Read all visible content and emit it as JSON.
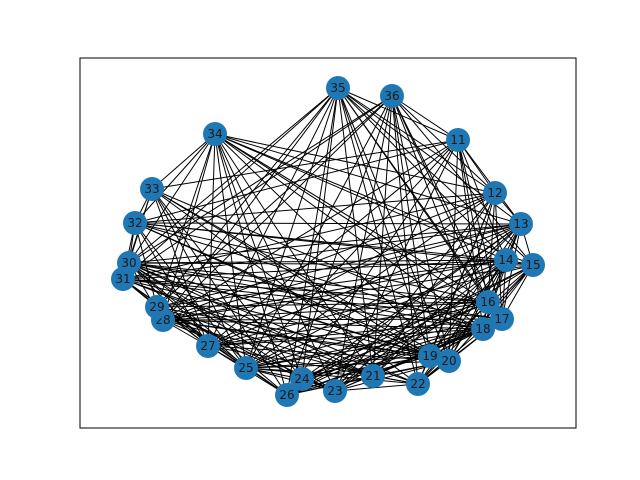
{
  "graph": {
    "node_color": "#1f77b4",
    "edge_color": "#000000",
    "nodes": [
      {
        "id": "11"
      },
      {
        "id": "12"
      },
      {
        "id": "13"
      },
      {
        "id": "14"
      },
      {
        "id": "15"
      },
      {
        "id": "16"
      },
      {
        "id": "17"
      },
      {
        "id": "18"
      },
      {
        "id": "19"
      },
      {
        "id": "20"
      },
      {
        "id": "21"
      },
      {
        "id": "22"
      },
      {
        "id": "23"
      },
      {
        "id": "24"
      },
      {
        "id": "25"
      },
      {
        "id": "26"
      },
      {
        "id": "27"
      },
      {
        "id": "28"
      },
      {
        "id": "29"
      },
      {
        "id": "30"
      },
      {
        "id": "31"
      },
      {
        "id": "32"
      },
      {
        "id": "33"
      },
      {
        "id": "34"
      },
      {
        "id": "35"
      },
      {
        "id": "36"
      }
    ],
    "edge_pattern": "dense; nearly every pair of nodes is connected"
  }
}
